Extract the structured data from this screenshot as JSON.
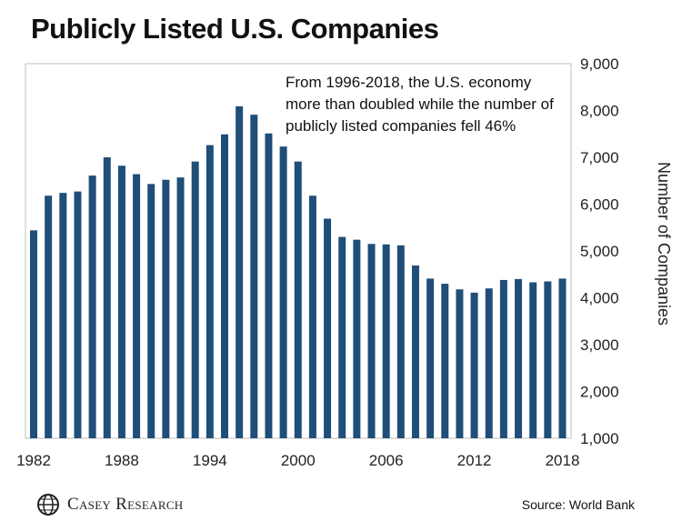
{
  "colors": {
    "bar": "#1f4e79",
    "frame": "#bfbfbf",
    "text": "#111111"
  },
  "chart_data": {
    "type": "bar",
    "title": "Publicly Listed U.S. Companies",
    "xlabel": "",
    "ylabel": "Number of Companies",
    "ylim": [
      1000,
      9000
    ],
    "yticks": [
      1000,
      2000,
      3000,
      4000,
      5000,
      6000,
      7000,
      8000,
      9000
    ],
    "ytick_labels": [
      "1,000",
      "2,000",
      "3,000",
      "4,000",
      "5,000",
      "6,000",
      "7,000",
      "8,000",
      "9,000"
    ],
    "xtick_labels": [
      "1982",
      "1988",
      "1994",
      "2000",
      "2006",
      "2012",
      "2018"
    ],
    "categories": [
      1982,
      1983,
      1984,
      1985,
      1986,
      1987,
      1988,
      1989,
      1990,
      1991,
      1992,
      1993,
      1994,
      1995,
      1996,
      1997,
      1998,
      1999,
      2000,
      2001,
      2002,
      2003,
      2004,
      2005,
      2006,
      2007,
      2008,
      2009,
      2010,
      2011,
      2012,
      2013,
      2014,
      2015,
      2016,
      2017,
      2018
    ],
    "values": [
      5440,
      6180,
      6240,
      6270,
      6610,
      7000,
      6820,
      6640,
      6430,
      6520,
      6570,
      6910,
      7260,
      7490,
      8090,
      7910,
      7510,
      7230,
      6910,
      6180,
      5690,
      5300,
      5240,
      5150,
      5140,
      5120,
      4690,
      4410,
      4300,
      4180,
      4110,
      4200,
      4380,
      4400,
      4330,
      4350,
      4410
    ],
    "annotation": [
      "From 1996-2018, the U.S. economy",
      "more than doubled while the number of",
      "publicly listed companies fell 46%"
    ]
  },
  "footer": {
    "brand": "Casey Research",
    "source": "Source: World Bank"
  }
}
